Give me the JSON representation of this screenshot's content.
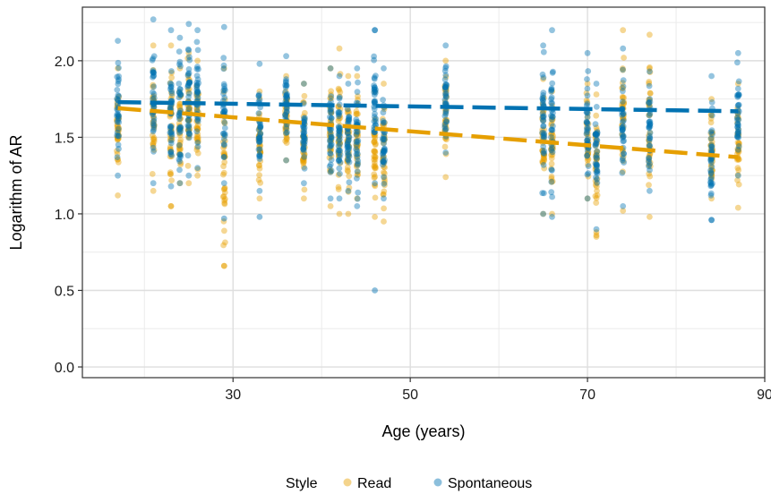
{
  "chart_data": {
    "type": "scatter",
    "title": "",
    "xlabel": "Age (years)",
    "ylabel": "Logarithm of AR",
    "xlim": [
      13,
      90
    ],
    "ylim": [
      -0.07,
      2.35
    ],
    "x_ticks": [
      30,
      50,
      70,
      90
    ],
    "y_ticks": [
      0.0,
      0.5,
      1.0,
      1.5,
      2.0
    ],
    "x_tick_labels": [
      "30",
      "50",
      "70",
      "90"
    ],
    "y_tick_labels": [
      "0.0",
      "0.5",
      "1.0",
      "1.5",
      "2.0"
    ],
    "grid": true,
    "legend": {
      "title": "Style",
      "position": "bottom"
    },
    "series": [
      {
        "name": "Read",
        "color": "#E69F00",
        "ages": [
          17,
          21,
          23,
          24,
          25,
          26,
          29,
          33,
          36,
          38,
          41,
          42,
          43,
          44,
          46,
          47,
          54,
          65,
          66,
          70,
          71,
          74,
          77,
          84,
          87
        ],
        "point_ranges": [
          [
            1.12,
            1.95
          ],
          [
            1.15,
            2.1
          ],
          [
            1.05,
            2.1
          ],
          [
            1.2,
            1.95
          ],
          [
            1.2,
            2.05
          ],
          [
            1.25,
            2.0
          ],
          [
            0.66,
            1.95
          ],
          [
            1.1,
            1.8
          ],
          [
            1.35,
            1.9
          ],
          [
            1.1,
            1.85
          ],
          [
            1.05,
            1.95
          ],
          [
            1.0,
            2.08
          ],
          [
            1.0,
            1.9
          ],
          [
            1.1,
            1.9
          ],
          [
            0.98,
            1.8
          ],
          [
            0.95,
            1.85
          ],
          [
            1.24,
            2.0
          ],
          [
            1.0,
            1.88
          ],
          [
            1.0,
            1.8
          ],
          [
            1.1,
            1.85
          ],
          [
            0.85,
            1.78
          ],
          [
            1.02,
            2.2
          ],
          [
            0.98,
            2.17
          ],
          [
            1.1,
            1.75
          ],
          [
            1.04,
            1.85
          ]
        ],
        "outliers": [
          [
            29,
            0.66
          ],
          [
            29,
            1.16
          ],
          [
            23,
            1.05
          ],
          [
            71,
            0.88
          ],
          [
            71,
            0.86
          ]
        ],
        "trend": {
          "x": [
            17,
            87
          ],
          "y": [
            1.69,
            1.37
          ]
        }
      },
      {
        "name": "Spontaneous",
        "color": "#0072B2",
        "ages": [
          17,
          21,
          23,
          24,
          25,
          26,
          29,
          33,
          36,
          38,
          41,
          42,
          43,
          44,
          46,
          47,
          54,
          65,
          66,
          70,
          71,
          74,
          77,
          84,
          87
        ],
        "point_ranges": [
          [
            1.25,
            2.13
          ],
          [
            1.2,
            2.27
          ],
          [
            1.18,
            2.2
          ],
          [
            1.2,
            2.15
          ],
          [
            1.25,
            2.24
          ],
          [
            1.3,
            2.2
          ],
          [
            1.2,
            2.22
          ],
          [
            1.15,
            1.98
          ],
          [
            1.35,
            2.03
          ],
          [
            1.2,
            1.85
          ],
          [
            1.1,
            1.95
          ],
          [
            1.1,
            1.9
          ],
          [
            1.15,
            1.85
          ],
          [
            1.05,
            1.95
          ],
          [
            1.2,
            2.2
          ],
          [
            1.1,
            1.95
          ],
          [
            1.4,
            2.1
          ],
          [
            1.0,
            2.1
          ],
          [
            0.98,
            2.2
          ],
          [
            1.1,
            2.05
          ],
          [
            0.9,
            1.85
          ],
          [
            1.05,
            2.08
          ],
          [
            1.15,
            1.93
          ],
          [
            0.96,
            1.9
          ],
          [
            1.25,
            2.05
          ]
        ],
        "outliers": [
          [
            29,
            0.97
          ],
          [
            33,
            0.98
          ],
          [
            46,
            0.5
          ],
          [
            46,
            2.2
          ],
          [
            84,
            0.96
          ]
        ],
        "trend": {
          "x": [
            17,
            87
          ],
          "y": [
            1.73,
            1.67
          ]
        }
      }
    ]
  }
}
